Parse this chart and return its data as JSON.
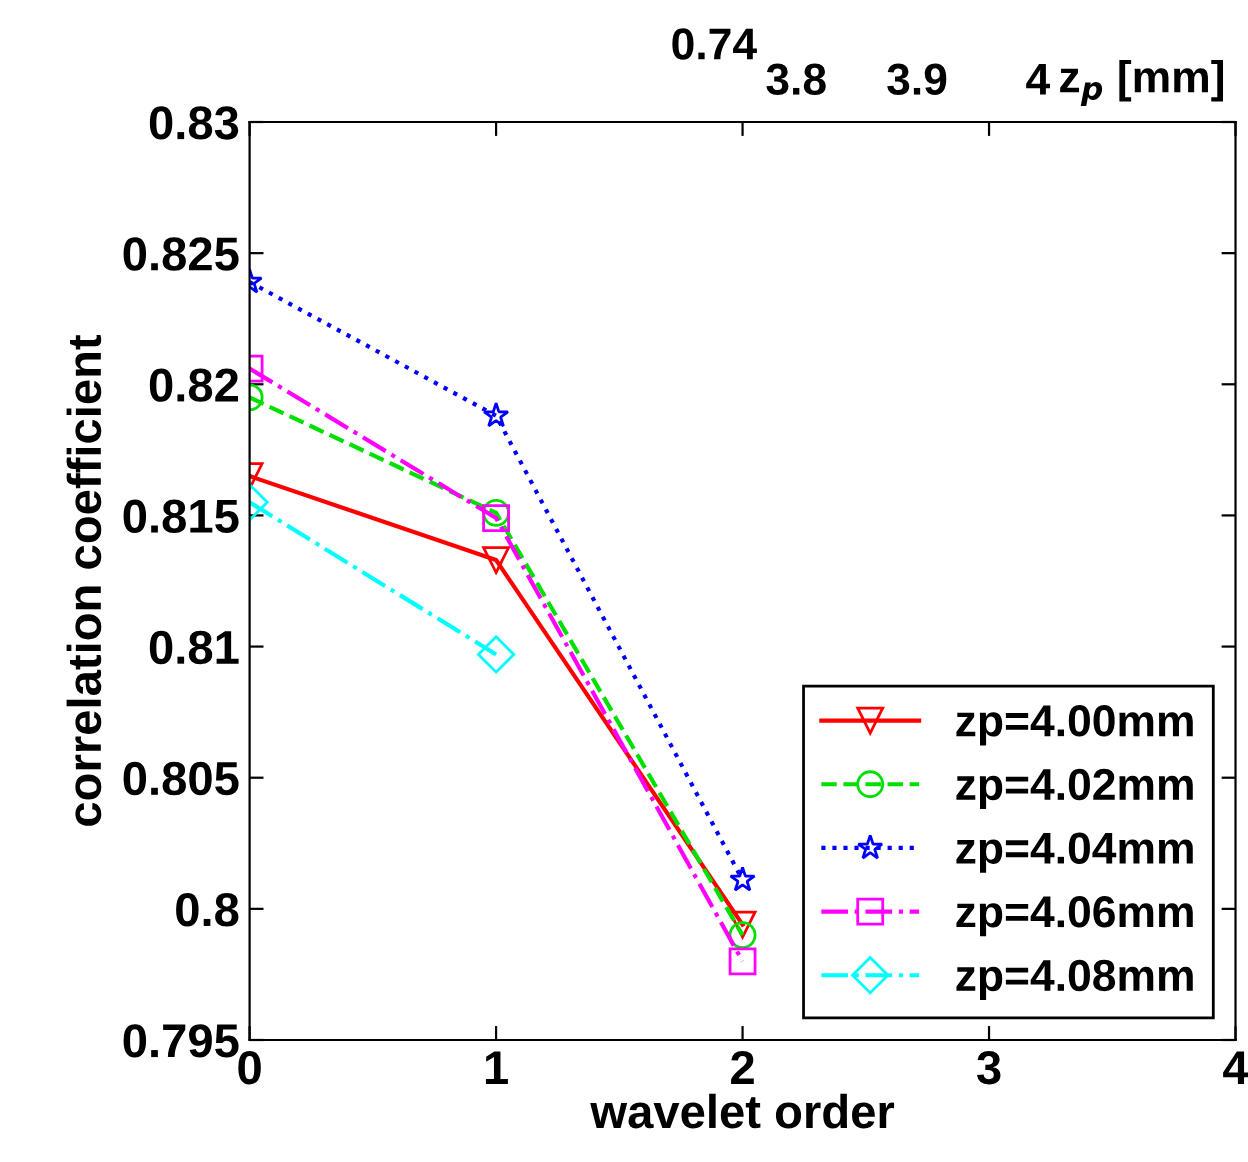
{
  "chart_data": [
    {
      "type": "line",
      "xlabel": "wavelet order",
      "ylabel": "correlation coefficient",
      "x": [
        0,
        1,
        2
      ],
      "xlim": [
        0,
        4
      ],
      "xticks": [
        0,
        1,
        2,
        3,
        4
      ],
      "ylim": [
        0.795,
        0.83
      ],
      "yticks": [
        0.795,
        0.8,
        0.805,
        0.81,
        0.815,
        0.82,
        0.825,
        0.83
      ],
      "legend": "lower right",
      "grid": false,
      "series": [
        {
          "name": "zp=4.00mm",
          "color": "#ff0000",
          "marker": "triangle",
          "line_style": "solid",
          "values": [
            0.8165,
            0.8133,
            0.7994
          ]
        },
        {
          "name": "zp=4.02mm",
          "color": "#00e000",
          "marker": "circle",
          "line_style": "dashed",
          "values": [
            0.8195,
            0.8151,
            0.799
          ]
        },
        {
          "name": "zp=4.04mm",
          "color": "#0000ff",
          "marker": "star",
          "line_style": "dotted",
          "values": [
            0.8239,
            0.8188,
            0.8011
          ]
        },
        {
          "name": "zp=4.06mm",
          "color": "#ff00ff",
          "marker": "square",
          "line_style": "dashdot",
          "values": [
            0.8206,
            0.8149,
            0.798
          ]
        },
        {
          "name": "zp=4.08mm",
          "color": "#00ffff",
          "marker": "diamond",
          "line_style": "dashdot",
          "values": [
            0.8155,
            0.8097,
            null
          ]
        }
      ]
    },
    {
      "type": "other",
      "annotations": [
        "0.74",
        "3.8",
        "3.9",
        "4",
        "z$_{p}$ [mm]"
      ]
    }
  ]
}
